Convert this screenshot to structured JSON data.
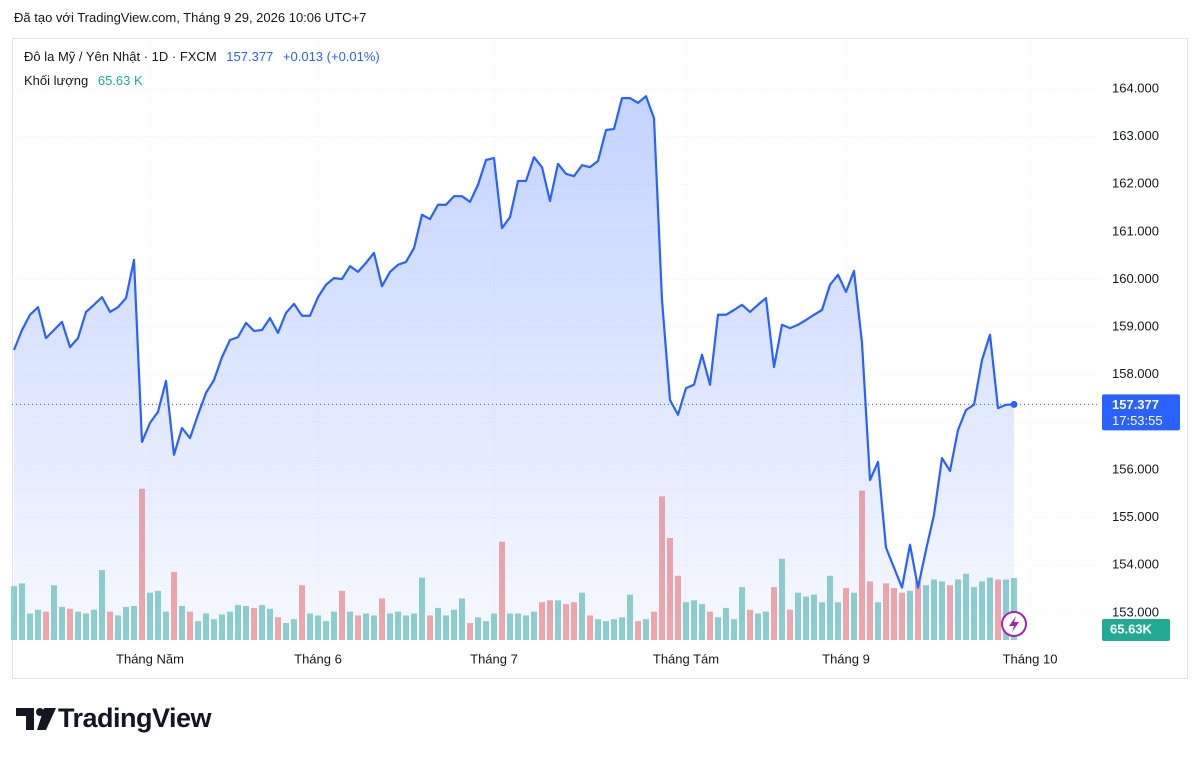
{
  "header": {
    "text": "Đã tạo với TradingView.com, Tháng 9 29, 2026 10:06 UTC+7"
  },
  "logo": "TradingView",
  "chart_data": {
    "type": "area",
    "symbol": "Đô la Mỹ / Yên Nhật · 1D · FXCM",
    "change": "+0.013 (+0.01%)",
    "volume_title": "Khối lượng",
    "volume_legend": "65.63 K",
    "volume_axis_label": "65.63K",
    "countdown": "17:53:55",
    "categories": [
      null,
      null,
      null,
      null,
      null,
      null,
      null,
      null,
      null,
      null,
      null,
      null,
      null,
      null,
      null,
      null,
      null,
      "Tháng Năm",
      null,
      null,
      null,
      null,
      null,
      null,
      null,
      null,
      null,
      null,
      null,
      null,
      null,
      null,
      null,
      null,
      null,
      null,
      null,
      null,
      "Tháng 6",
      null,
      null,
      null,
      null,
      null,
      null,
      null,
      null,
      null,
      null,
      null,
      null,
      null,
      null,
      null,
      null,
      null,
      null,
      null,
      null,
      null,
      "Tháng 7",
      null,
      null,
      null,
      null,
      null,
      null,
      null,
      null,
      null,
      null,
      null,
      null,
      null,
      null,
      null,
      null,
      null,
      null,
      null,
      null,
      null,
      null,
      null,
      "Tháng Tám",
      null,
      null,
      null,
      null,
      null,
      null,
      null,
      null,
      null,
      null,
      null,
      null,
      null,
      null,
      null,
      null,
      null,
      null,
      null,
      "Tháng 9",
      null,
      null,
      null,
      null,
      null,
      null,
      null,
      null,
      null,
      null,
      null,
      null,
      null,
      null,
      null,
      null,
      null,
      null,
      null,
      null,
      null,
      null,
      "Tháng 10",
      null
    ],
    "series": [
      {
        "name": "Đô la Mỹ / Yên Nhật · 1D · FXCM",
        "color": "#2962ff",
        "values": [
          158.52,
          158.94,
          159.26,
          159.42,
          158.77,
          158.94,
          159.11,
          158.58,
          158.77,
          159.32,
          159.47,
          159.63,
          159.32,
          159.42,
          159.61,
          160.41,
          156.59,
          156.99,
          157.22,
          157.87,
          156.32,
          156.88,
          156.67,
          157.16,
          157.62,
          157.89,
          158.37,
          158.73,
          158.79,
          159.09,
          158.92,
          158.94,
          159.19,
          158.88,
          159.3,
          159.49,
          159.24,
          159.24,
          159.63,
          159.89,
          160.03,
          160.01,
          160.28,
          160.16,
          160.35,
          160.56,
          159.86,
          160.16,
          160.31,
          160.37,
          160.66,
          161.36,
          161.27,
          161.57,
          161.57,
          161.75,
          161.75,
          161.63,
          161.99,
          162.51,
          162.55,
          161.08,
          161.31,
          162.07,
          162.07,
          162.57,
          162.36,
          161.65,
          162.43,
          162.22,
          162.17,
          162.4,
          162.36,
          162.49,
          163.14,
          163.16,
          163.81,
          163.81,
          163.71,
          163.85,
          163.39,
          159.57,
          157.47,
          157.16,
          157.72,
          157.79,
          158.42,
          157.79,
          159.26,
          159.26,
          159.36,
          159.47,
          159.32,
          159.47,
          159.61,
          158.16,
          159.05,
          158.98,
          159.05,
          159.15,
          159.26,
          159.36,
          159.89,
          160.1,
          159.74,
          160.18,
          158.67,
          155.79,
          156.17,
          154.37,
          153.95,
          153.53,
          154.43,
          153.53,
          154.32,
          155.06,
          156.25,
          155.98,
          156.84,
          157.26,
          157.37,
          158.31,
          158.84,
          157.3,
          157.37,
          157.377,
          null,
          null,
          null
        ]
      },
      {
        "name": "Khối lượng",
        "type": "bar",
        "up_color": "#92d2cc",
        "down_color": "#f7a9a7",
        "values": [
          57,
          60,
          28,
          32,
          30,
          58,
          35,
          33,
          30,
          28,
          32,
          74,
          30,
          26,
          35,
          36,
          160,
          50,
          52,
          30,
          72,
          36,
          30,
          20,
          28,
          22,
          27,
          30,
          37,
          36,
          34,
          37,
          33,
          24,
          18,
          22,
          58,
          28,
          26,
          20,
          30,
          52,
          30,
          26,
          28,
          26,
          44,
          28,
          30,
          26,
          28,
          66,
          26,
          34,
          26,
          32,
          44,
          18,
          24,
          20,
          28,
          104,
          28,
          28,
          26,
          30,
          40,
          42,
          42,
          38,
          40,
          50,
          26,
          22,
          20,
          22,
          24,
          48,
          20,
          22,
          30,
          152,
          108,
          68,
          40,
          42,
          38,
          30,
          24,
          34,
          22,
          56,
          32,
          28,
          30,
          56,
          86,
          32,
          50,
          46,
          48,
          40,
          68,
          40,
          55,
          50,
          158,
          62,
          40,
          60,
          55,
          50,
          52,
          62,
          58,
          64,
          62,
          58,
          64,
          70,
          56,
          62,
          66,
          64,
          64,
          65.63,
          null,
          null,
          null
        ]
      }
    ],
    "ylim": [
      152.43,
      165.03
    ],
    "yticks": [
      {
        "value": 153,
        "label": "153.000"
      },
      {
        "value": 154,
        "label": "154.000"
      },
      {
        "value": 155,
        "label": "155.000"
      },
      {
        "value": 156,
        "label": "156.000"
      },
      {
        "value": 157,
        "label": "157.000"
      },
      {
        "value": 158,
        "label": "158.000"
      },
      {
        "value": 159,
        "label": "159.000"
      },
      {
        "value": 160,
        "label": "160.000"
      },
      {
        "value": 161,
        "label": "161.000"
      },
      {
        "value": 162,
        "label": "162.000"
      },
      {
        "value": 163,
        "label": "163.000"
      },
      {
        "value": 164,
        "label": "164.000"
      }
    ],
    "grid": true
  }
}
